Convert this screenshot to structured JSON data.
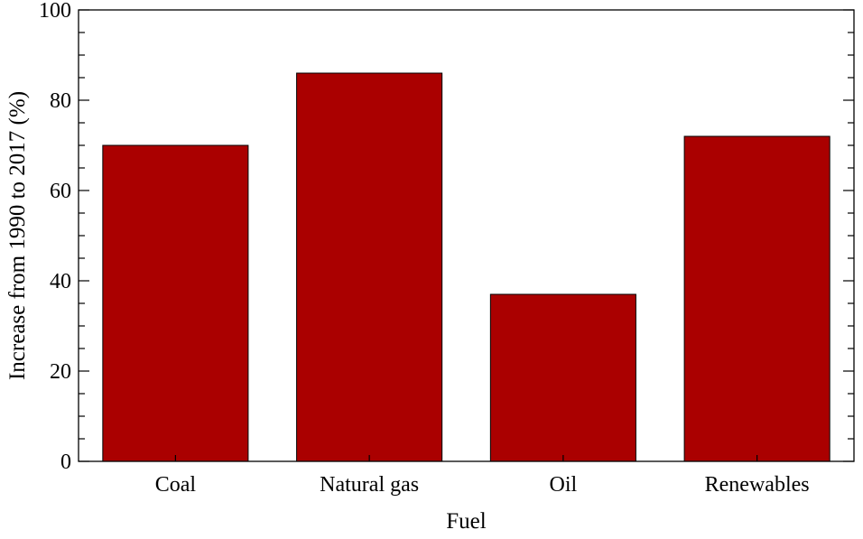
{
  "chart_data": {
    "type": "bar",
    "title": "",
    "xlabel": "Fuel",
    "ylabel": "Increase from 1990 to 2017 (%)",
    "categories": [
      "Coal",
      "Natural gas",
      "Oil",
      "Renewables"
    ],
    "values": [
      70,
      86,
      37,
      72
    ],
    "ylim": [
      0,
      100
    ],
    "yticks": [
      0,
      20,
      40,
      60,
      80,
      100
    ],
    "yticks_minor_step": 5,
    "ytick_labels": [
      "0",
      "20",
      "40",
      "60",
      "80",
      "100"
    ],
    "grid": false,
    "legend": "none",
    "bar_color": "#aa0000",
    "bar_edge_color": "#000000"
  }
}
